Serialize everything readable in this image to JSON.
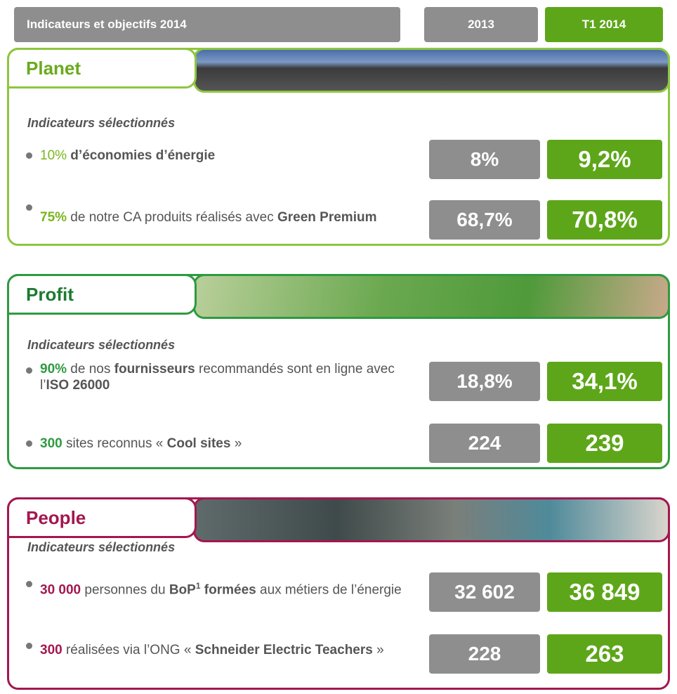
{
  "header": {
    "title": "Indicateurs et objectifs 2014",
    "col_2013": "2013",
    "col_t1": "T1 2014"
  },
  "sections": [
    {
      "title": "Planet",
      "subtitle": "Indicateurs sélectionnés",
      "items": [
        {
          "text": [
            "10%",
            " d’économies d’énergie"
          ],
          "value_2013": "8%",
          "value_t1": "9,2%"
        },
        {
          "text": [
            "75%",
            " de notre CA produits réalisés avec ",
            "Green Premium"
          ],
          "value_2013": "68,7%",
          "value_t1": "70,8%"
        }
      ]
    },
    {
      "title": "Profit",
      "subtitle": "Indicateurs sélectionnés",
      "items": [
        {
          "text": [
            "90%",
            " de nos ",
            "fournisseurs",
            " recommandés sont en ligne avec l’",
            "ISO 26000"
          ],
          "value_2013": "18,8%",
          "value_t1": "34,1%"
        },
        {
          "text": [
            "300",
            " sites reconnus  « ",
            "Cool sites",
            " »"
          ],
          "value_2013": "224",
          "value_t1": "239"
        }
      ]
    },
    {
      "title": "People",
      "subtitle": "Indicateurs sélectionnés",
      "items": [
        {
          "text": [
            "30 000",
            " personnes du ",
            "BoP",
            "1",
            " formées",
            " aux métiers de l’énergie"
          ],
          "value_2013": "32 602",
          "value_t1": "36 849"
        },
        {
          "text": [
            "300",
            " réalisées via l’ONG « ",
            "Schneider Electric Teachers",
            " »"
          ],
          "value_2013": "228",
          "value_t1": "263"
        }
      ]
    }
  ]
}
